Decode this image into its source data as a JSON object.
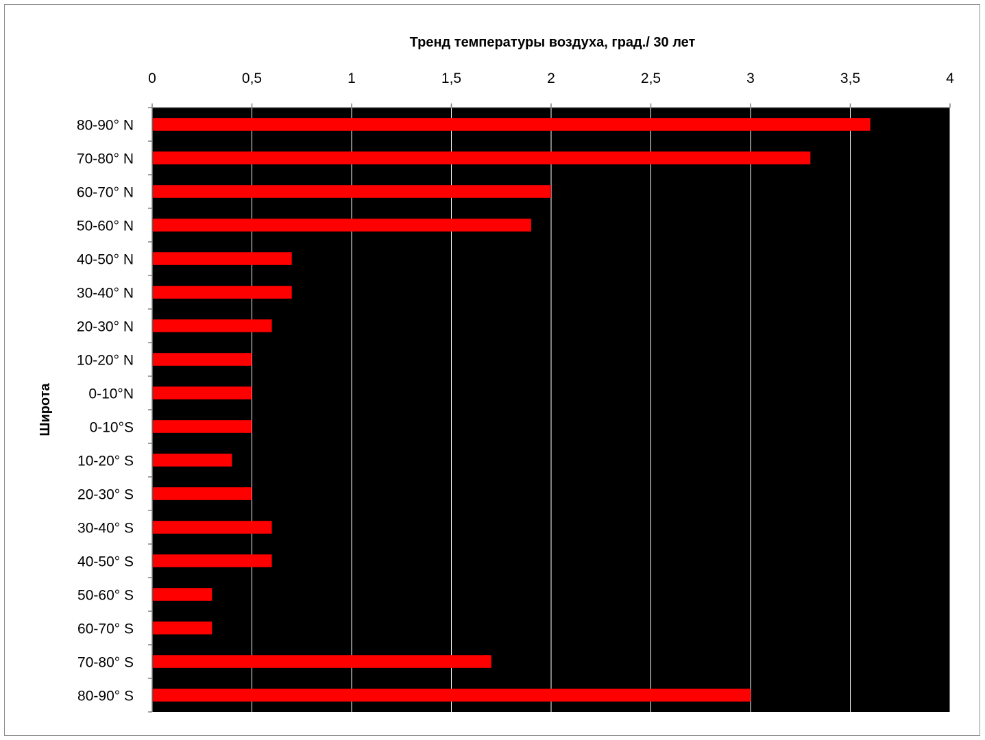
{
  "chart_data": {
    "type": "bar",
    "orientation": "horizontal",
    "categories": [
      "80-90° N",
      "70-80° N",
      "60-70° N",
      "50-60° N",
      "40-50° N",
      "30-40° N",
      "20-30° N",
      "10-20° N",
      "0-10°N",
      "0-10°S",
      "10-20° S",
      "20-30° S",
      "30-40° S",
      "40-50° S",
      "50-60° S",
      "60-70° S",
      "70-80° S",
      "80-90° S"
    ],
    "values": [
      3.6,
      3.3,
      2.0,
      1.9,
      0.7,
      0.7,
      0.6,
      0.5,
      0.5,
      0.5,
      0.4,
      0.5,
      0.6,
      0.6,
      0.3,
      0.3,
      1.7,
      3.0
    ],
    "title": "",
    "xlabel": "Тренд температуры воздуха, град./ 30 лет",
    "ylabel": "Широта",
    "xlim": [
      0,
      4
    ],
    "xticks": [
      0,
      0.5,
      1,
      1.5,
      2,
      2.5,
      3,
      3.5,
      4
    ],
    "xtick_labels": [
      "0",
      "0,5",
      "1",
      "1,5",
      "2",
      "2,5",
      "3",
      "3,5",
      "4"
    ],
    "x_axis_position": "top",
    "grid": true,
    "legend": "none",
    "colors": {
      "bar": "#ff0000",
      "plot_background": "#000000",
      "gridline": "#ffffff",
      "page_background": "#ffffff"
    }
  }
}
